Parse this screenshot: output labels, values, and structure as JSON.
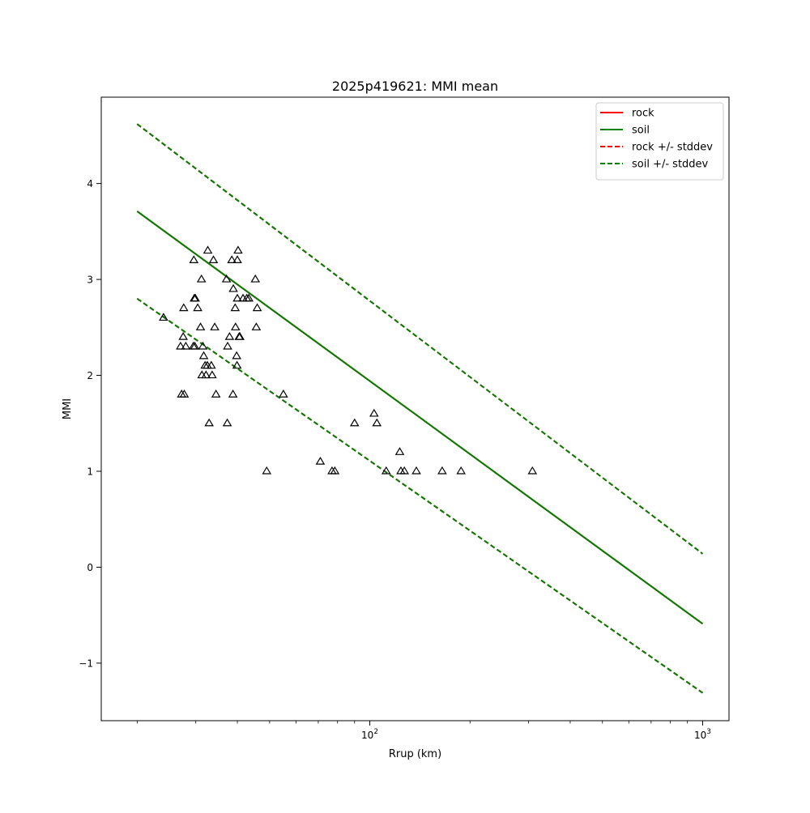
{
  "chart_data": {
    "type": "line",
    "title": "2025p419621: MMI mean",
    "xlabel": "Rrup (km)",
    "ylabel": "MMI",
    "xscale": "log",
    "xlim": [
      15.6,
      1200
    ],
    "ylim": [
      -1.6,
      4.9
    ],
    "x_ticks": [
      {
        "value": 100,
        "base": "10",
        "exp": "2"
      },
      {
        "value": 1000,
        "base": "10",
        "exp": "3"
      }
    ],
    "x_minor_ticks": [
      20,
      30,
      40,
      50,
      60,
      70,
      80,
      90,
      200,
      300,
      400,
      500,
      600,
      700,
      800,
      900
    ],
    "y_ticks": [
      {
        "value": -1,
        "label": "−1"
      },
      {
        "value": 0,
        "label": "0"
      },
      {
        "value": 1,
        "label": "1"
      },
      {
        "value": 2,
        "label": "2"
      },
      {
        "value": 3,
        "label": "3"
      },
      {
        "value": 4,
        "label": "4"
      }
    ],
    "grid": false,
    "legend_position": "top-right",
    "series": [
      {
        "name": "rock",
        "color": "#ff0000",
        "dash": "solid",
        "x": [
          20,
          1000
        ],
        "y": [
          3.71,
          -0.59
        ]
      },
      {
        "name": "soil",
        "color": "#008000",
        "dash": "solid",
        "x": [
          20,
          1000
        ],
        "y": [
          3.71,
          -0.59
        ]
      },
      {
        "name": "rock +/- stddev",
        "color": "#ff0000",
        "dash": "dashed",
        "x": [
          20,
          1000
        ],
        "y": [
          4.62,
          0.14
        ]
      },
      {
        "name": "soil +/- stddev",
        "color": "#008000",
        "dash": "dashed",
        "x": [
          20,
          1000
        ],
        "y": [
          4.62,
          0.14
        ]
      }
    ],
    "extra_lines": [
      {
        "series": "rock +/- stddev",
        "color": "#ff0000",
        "dash": "dashed",
        "x": [
          20,
          1000
        ],
        "y": [
          2.8,
          -1.31
        ]
      },
      {
        "series": "soil +/- stddev",
        "color": "#008000",
        "dash": "dashed",
        "x": [
          20,
          1000
        ],
        "y": [
          2.8,
          -1.31
        ]
      }
    ],
    "observations": {
      "marker": "triangle",
      "points": [
        [
          24.0,
          2.6
        ],
        [
          27.0,
          2.3
        ],
        [
          27.5,
          2.4
        ],
        [
          27.6,
          2.7
        ],
        [
          27.2,
          1.8
        ],
        [
          27.7,
          1.8
        ],
        [
          28.0,
          2.3
        ],
        [
          29.5,
          2.3
        ],
        [
          29.8,
          2.3
        ],
        [
          29.7,
          2.8
        ],
        [
          29.9,
          2.8
        ],
        [
          29.6,
          3.2
        ],
        [
          30.4,
          2.7
        ],
        [
          31.0,
          2.5
        ],
        [
          31.2,
          3.0
        ],
        [
          31.5,
          2.3
        ],
        [
          31.3,
          2.0
        ],
        [
          31.7,
          2.2
        ],
        [
          32.0,
          2.1
        ],
        [
          32.2,
          2.0
        ],
        [
          32.5,
          2.1
        ],
        [
          32.6,
          3.3
        ],
        [
          32.9,
          1.5
        ],
        [
          33.4,
          2.1
        ],
        [
          33.6,
          2.0
        ],
        [
          33.9,
          3.2
        ],
        [
          34.2,
          2.5
        ],
        [
          34.5,
          1.8
        ],
        [
          37.1,
          3.0
        ],
        [
          37.3,
          1.5
        ],
        [
          37.4,
          2.3
        ],
        [
          37.9,
          2.4
        ],
        [
          38.5,
          3.2
        ],
        [
          38.8,
          1.8
        ],
        [
          38.9,
          2.9
        ],
        [
          39.4,
          2.7
        ],
        [
          39.5,
          2.5
        ],
        [
          39.8,
          2.2
        ],
        [
          39.9,
          2.1
        ],
        [
          40.0,
          2.8
        ],
        [
          40.0,
          3.2
        ],
        [
          40.2,
          3.3
        ],
        [
          40.5,
          2.4
        ],
        [
          40.7,
          2.4
        ],
        [
          41.6,
          2.8
        ],
        [
          42.7,
          2.8
        ],
        [
          43.3,
          2.8
        ],
        [
          45.3,
          3.0
        ],
        [
          45.6,
          2.5
        ],
        [
          45.9,
          2.7
        ],
        [
          49.0,
          1.0
        ],
        [
          55.0,
          1.8
        ],
        [
          71.0,
          1.1
        ],
        [
          77.0,
          1.0
        ],
        [
          78.5,
          1.0
        ],
        [
          90.0,
          1.5
        ],
        [
          103.0,
          1.6
        ],
        [
          105.0,
          1.5
        ],
        [
          112.0,
          1.0
        ],
        [
          123.0,
          1.2
        ],
        [
          124.0,
          1.0
        ],
        [
          127.0,
          1.0
        ],
        [
          138.0,
          1.0
        ],
        [
          165.0,
          1.0
        ],
        [
          188.0,
          1.0
        ],
        [
          308.0,
          1.0
        ]
      ]
    }
  }
}
